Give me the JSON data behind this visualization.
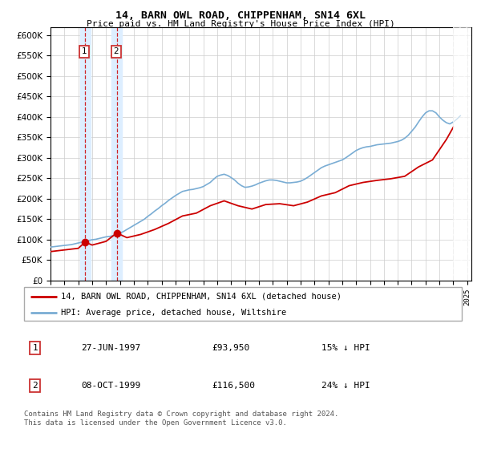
{
  "title": "14, BARN OWL ROAD, CHIPPENHAM, SN14 6XL",
  "subtitle": "Price paid vs. HM Land Registry's House Price Index (HPI)",
  "sale1_date": 1997.49,
  "sale1_price": 93950,
  "sale2_date": 1999.77,
  "sale2_price": 116500,
  "sale1_text": "27-JUN-1997",
  "sale1_price_text": "£93,950",
  "sale1_hpi_text": "15% ↓ HPI",
  "sale2_text": "08-OCT-1999",
  "sale2_price_text": "£116,500",
  "sale2_hpi_text": "24% ↓ HPI",
  "legend_line1": "14, BARN OWL ROAD, CHIPPENHAM, SN14 6XL (detached house)",
  "legend_line2": "HPI: Average price, detached house, Wiltshire",
  "footer": "Contains HM Land Registry data © Crown copyright and database right 2024.\nThis data is licensed under the Open Government Licence v3.0.",
  "ylim_max": 620000,
  "xlim_start": 1995.0,
  "xlim_end": 2025.3,
  "red_color": "#cc0000",
  "blue_color": "#7aadd4",
  "shade_color": "#ddeeff",
  "grid_color": "#cccccc",
  "hpi_years": [
    1995.0,
    1995.25,
    1995.5,
    1995.75,
    1996.0,
    1996.25,
    1996.5,
    1996.75,
    1997.0,
    1997.25,
    1997.5,
    1997.75,
    1998.0,
    1998.25,
    1998.5,
    1998.75,
    1999.0,
    1999.25,
    1999.5,
    1999.75,
    2000.0,
    2000.25,
    2000.5,
    2000.75,
    2001.0,
    2001.25,
    2001.5,
    2001.75,
    2002.0,
    2002.25,
    2002.5,
    2002.75,
    2003.0,
    2003.25,
    2003.5,
    2003.75,
    2004.0,
    2004.25,
    2004.5,
    2004.75,
    2005.0,
    2005.25,
    2005.5,
    2005.75,
    2006.0,
    2006.25,
    2006.5,
    2006.75,
    2007.0,
    2007.25,
    2007.5,
    2007.75,
    2008.0,
    2008.25,
    2008.5,
    2008.75,
    2009.0,
    2009.25,
    2009.5,
    2009.75,
    2010.0,
    2010.25,
    2010.5,
    2010.75,
    2011.0,
    2011.25,
    2011.5,
    2011.75,
    2012.0,
    2012.25,
    2012.5,
    2012.75,
    2013.0,
    2013.25,
    2013.5,
    2013.75,
    2014.0,
    2014.25,
    2014.5,
    2014.75,
    2015.0,
    2015.25,
    2015.5,
    2015.75,
    2016.0,
    2016.25,
    2016.5,
    2016.75,
    2017.0,
    2017.25,
    2017.5,
    2017.75,
    2018.0,
    2018.25,
    2018.5,
    2018.75,
    2019.0,
    2019.25,
    2019.5,
    2019.75,
    2020.0,
    2020.25,
    2020.5,
    2020.75,
    2021.0,
    2021.25,
    2021.5,
    2021.75,
    2022.0,
    2022.25,
    2022.5,
    2022.75,
    2023.0,
    2023.25,
    2023.5,
    2023.75,
    2024.0,
    2024.25,
    2024.5
  ],
  "hpi_values": [
    82000,
    83000,
    84000,
    85000,
    86000,
    87000,
    88000,
    90000,
    92000,
    94000,
    96000,
    98000,
    100000,
    101000,
    103000,
    105000,
    107000,
    108000,
    110000,
    112000,
    116000,
    120000,
    125000,
    130000,
    135000,
    140000,
    145000,
    150000,
    157000,
    163000,
    170000,
    176000,
    183000,
    189000,
    196000,
    202000,
    208000,
    213000,
    218000,
    220000,
    222000,
    223000,
    225000,
    227000,
    230000,
    235000,
    240000,
    248000,
    255000,
    258000,
    260000,
    257000,
    252000,
    246000,
    238000,
    232000,
    228000,
    229000,
    231000,
    234000,
    238000,
    241000,
    244000,
    246000,
    246000,
    245000,
    243000,
    241000,
    239000,
    239000,
    240000,
    241000,
    243000,
    247000,
    252000,
    258000,
    264000,
    270000,
    276000,
    280000,
    283000,
    286000,
    289000,
    292000,
    295000,
    300000,
    306000,
    312000,
    318000,
    322000,
    325000,
    327000,
    328000,
    330000,
    332000,
    333000,
    334000,
    335000,
    336000,
    338000,
    340000,
    343000,
    348000,
    355000,
    365000,
    375000,
    388000,
    400000,
    410000,
    415000,
    415000,
    410000,
    400000,
    392000,
    386000,
    383000,
    388000,
    395000,
    403000
  ],
  "price_years": [
    1995.0,
    1996.0,
    1997.0,
    1997.49,
    1998.0,
    1999.0,
    1999.77,
    2000.5,
    2001.5,
    2002.5,
    2003.5,
    2004.5,
    2005.5,
    2006.5,
    2007.5,
    2008.5,
    2009.5,
    2010.5,
    2011.5,
    2012.5,
    2013.5,
    2014.5,
    2015.5,
    2016.5,
    2017.5,
    2018.5,
    2019.5,
    2020.5,
    2021.5,
    2022.5,
    2023.5,
    2024.0
  ],
  "price_values": [
    71000,
    75000,
    79000,
    93950,
    87000,
    96000,
    116500,
    105000,
    113000,
    125000,
    140000,
    158000,
    165000,
    183000,
    195000,
    183000,
    175000,
    186000,
    188000,
    183000,
    192000,
    207000,
    215000,
    232000,
    240000,
    245000,
    249000,
    255000,
    278000,
    295000,
    345000,
    375000
  ]
}
